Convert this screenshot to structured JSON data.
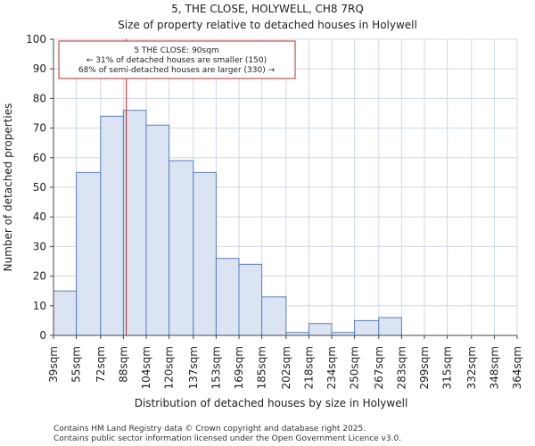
{
  "chart_data": {
    "type": "bar",
    "title_line1": "5, THE CLOSE, HOLYWELL, CH8 7RQ",
    "title_line2": "Size of property relative to detached houses in Holywell",
    "xlabel": "Distribution of detached houses by size in Holywell",
    "ylabel": "Number of detached properties",
    "ylim": [
      0,
      100
    ],
    "yticks": [
      0,
      10,
      20,
      30,
      40,
      50,
      60,
      70,
      80,
      90,
      100
    ],
    "bin_edges": [
      39,
      55,
      72,
      88,
      104,
      120,
      137,
      153,
      169,
      185,
      202,
      218,
      234,
      250,
      267,
      283,
      299,
      315,
      332,
      348,
      364
    ],
    "tick_labels": [
      "39sqm",
      "55sqm",
      "72sqm",
      "88sqm",
      "104sqm",
      "120sqm",
      "137sqm",
      "153sqm",
      "169sqm",
      "185sqm",
      "202sqm",
      "218sqm",
      "234sqm",
      "250sqm",
      "267sqm",
      "283sqm",
      "299sqm",
      "315sqm",
      "332sqm",
      "348sqm",
      "364sqm"
    ],
    "values": [
      15,
      55,
      74,
      76,
      71,
      59,
      55,
      26,
      24,
      13,
      1,
      4,
      1,
      5,
      6,
      0,
      0,
      0,
      0,
      0
    ],
    "marker_value": 90,
    "annotation": {
      "line1": "5 THE CLOSE: 90sqm",
      "line2": "← 31% of detached houses are smaller (150)",
      "line3": "68% of semi-detached houses are larger (330) →"
    },
    "colors": {
      "bar_fill": "#dbe4f3",
      "bar_stroke": "#5a7fc1",
      "marker": "#c0282b",
      "grid": "#cfd8e6"
    },
    "grid": true
  },
  "footer": {
    "line1": "Contains HM Land Registry data © Crown copyright and database right 2025.",
    "line2": "Contains public sector information licensed under the Open Government Licence v3.0."
  }
}
